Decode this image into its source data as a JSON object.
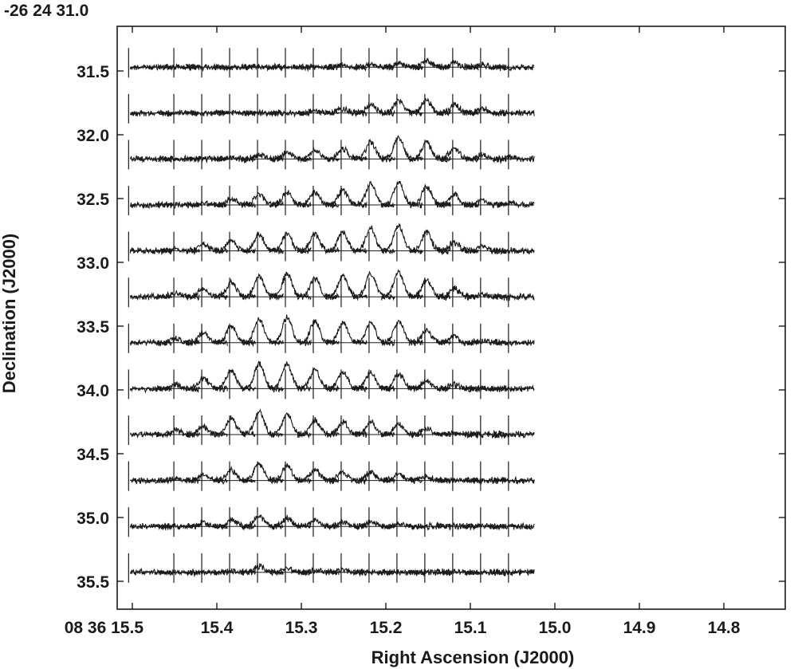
{
  "chart_data": {
    "type": "line",
    "title": "",
    "xlabel": "Right Ascension (J2000)",
    "ylabel": "Declination (J2000)",
    "x_ticks": {
      "labels": [
        "08 36 15.5",
        "15.4",
        "15.3",
        "15.2",
        "15.1",
        "15.0",
        "14.9",
        "14.8"
      ],
      "values": [
        15.5,
        15.4,
        15.3,
        15.2,
        15.1,
        15.0,
        14.9,
        14.8
      ]
    },
    "y_ticks": {
      "top_label": "-26 24 31.0",
      "labels": [
        "31.5",
        "32.0",
        "32.5",
        "33.0",
        "33.5",
        "34.0",
        "34.5",
        "35.0",
        "35.5"
      ],
      "values": [
        31.5,
        32.0,
        32.5,
        33.0,
        33.5,
        34.0,
        34.5,
        35.0,
        35.5
      ]
    },
    "xlim": [
      15.5,
      14.75
    ],
    "ylim": [
      35.75,
      31.0
    ],
    "grid": {
      "description": "12 x 14 grid of spectra; each cell shows a spectrum with a zero baseline",
      "ra_centers": [
        15.478,
        15.445,
        15.412,
        15.379,
        15.346,
        15.313,
        15.28,
        15.247,
        15.214,
        15.181,
        15.148,
        15.115,
        15.082,
        15.049
      ],
      "dec_centers": [
        31.47,
        31.83,
        32.19,
        32.55,
        32.91,
        33.27,
        33.63,
        33.99,
        34.35,
        34.71,
        35.07,
        35.43
      ],
      "peak_amplitudes": [
        [
          0,
          0,
          0,
          0,
          0,
          0,
          0,
          0.1,
          0.1,
          0.2,
          0.3,
          0.2,
          0.1,
          0
        ],
        [
          0,
          0,
          0,
          0,
          0,
          0,
          0.1,
          0.2,
          0.4,
          0.6,
          0.6,
          0.4,
          0.2,
          0
        ],
        [
          0,
          0,
          0,
          0.1,
          0.2,
          0.3,
          0.4,
          0.5,
          0.8,
          1.0,
          0.8,
          0.5,
          0.2,
          0.1
        ],
        [
          0,
          0,
          0.1,
          0.3,
          0.5,
          0.6,
          0.6,
          0.7,
          1.0,
          1.1,
          0.9,
          0.5,
          0.2,
          0.1
        ],
        [
          0,
          0.1,
          0.3,
          0.5,
          0.8,
          0.8,
          0.8,
          0.9,
          1.1,
          1.2,
          0.9,
          0.4,
          0.2,
          0
        ],
        [
          0,
          0.2,
          0.4,
          0.7,
          1.0,
          1.1,
          0.9,
          1.0,
          1.1,
          1.2,
          0.8,
          0.4,
          0.1,
          0
        ],
        [
          0,
          0.2,
          0.5,
          0.8,
          1.1,
          1.2,
          1.0,
          1.0,
          1.0,
          1.0,
          0.6,
          0.3,
          0.1,
          0
        ],
        [
          0,
          0.2,
          0.5,
          0.9,
          1.2,
          1.2,
          0.9,
          0.8,
          0.8,
          0.7,
          0.4,
          0.2,
          0,
          0
        ],
        [
          0,
          0.2,
          0.4,
          0.8,
          1.1,
          1.0,
          0.7,
          0.6,
          0.6,
          0.5,
          0.3,
          0.1,
          0,
          0
        ],
        [
          0,
          0.1,
          0.3,
          0.5,
          0.8,
          0.7,
          0.5,
          0.4,
          0.4,
          0.3,
          0.2,
          0,
          0,
          0
        ],
        [
          0,
          0,
          0.2,
          0.3,
          0.5,
          0.4,
          0.3,
          0.2,
          0.2,
          0.1,
          0,
          0,
          0,
          0
        ],
        [
          0,
          0,
          0,
          0.1,
          0.3,
          0.2,
          0.1,
          0.1,
          0,
          0,
          0,
          0,
          0,
          0
        ]
      ]
    },
    "line_color": "#1a1a1a"
  }
}
